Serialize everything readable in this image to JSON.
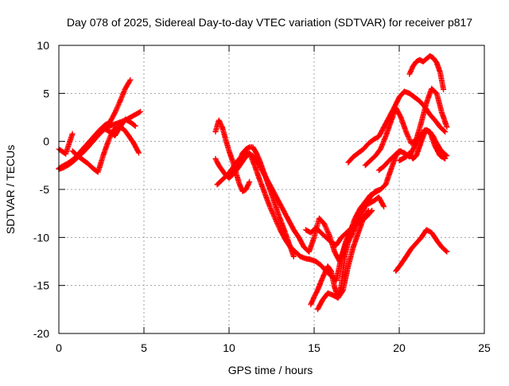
{
  "chart_data": {
    "type": "scatter",
    "title": "Day 078 of 2025, Sidereal Day-to-day VTEC variation (SDTVAR) for receiver p817",
    "xlabel": "GPS time / hours",
    "ylabel": "SDTVAR / TECUs",
    "xlim": [
      0,
      25
    ],
    "ylim": [
      -20,
      10
    ],
    "xticks": [
      0,
      5,
      10,
      15,
      20,
      25
    ],
    "yticks": [
      -20,
      -15,
      -10,
      -5,
      0,
      5,
      10
    ],
    "xtick_labels": [
      "0",
      "5",
      "10",
      "15",
      "20",
      "25"
    ],
    "ytick_labels": [
      "-20",
      "-15",
      "-10",
      "-5",
      "0",
      "5",
      "10"
    ],
    "grid": true,
    "legend": "none",
    "marker": "plus",
    "color": "#ff0000",
    "series": [
      {
        "x": [
          0.0,
          0.3,
          0.6,
          0.9,
          1.2,
          1.5,
          1.8,
          2.1,
          2.4,
          2.7,
          3.0,
          3.3,
          3.6,
          3.9,
          4.2
        ],
        "y": [
          -2.8,
          -2.5,
          -2.2,
          -1.8,
          -1.2,
          -0.6,
          0.0,
          0.6,
          1.2,
          1.7,
          2.0,
          3.0,
          4.2,
          5.5,
          6.4
        ]
      },
      {
        "x": [
          0.0,
          0.3,
          0.6,
          0.9,
          1.2,
          1.5,
          1.8,
          2.1,
          2.4,
          2.7,
          3.0,
          3.3,
          3.6,
          3.9,
          4.2,
          4.5,
          4.8
        ],
        "y": [
          -2.9,
          -2.7,
          -2.4,
          -2.0,
          -1.5,
          -1.0,
          -0.4,
          0.3,
          0.9,
          1.3,
          1.6,
          1.8,
          2.0,
          2.2,
          2.5,
          2.8,
          3.1
        ]
      },
      {
        "x": [
          0.8,
          1.1,
          1.4,
          1.7,
          2.0,
          2.3,
          2.6,
          2.9,
          3.2,
          3.5,
          3.8,
          4.1,
          4.4,
          4.7
        ],
        "y": [
          -1.0,
          -1.5,
          -1.9,
          -2.3,
          -2.8,
          -3.2,
          -1.5,
          0.0,
          1.2,
          1.5,
          1.3,
          0.6,
          -0.2,
          -1.2
        ]
      },
      {
        "x": [
          1.5,
          1.8,
          2.1,
          2.4,
          2.7,
          3.0,
          3.3,
          3.6,
          3.9,
          4.2,
          4.5
        ],
        "y": [
          -1.0,
          -0.4,
          0.2,
          0.8,
          1.3,
          1.0,
          0.6,
          1.5,
          2.3,
          2.0,
          1.6
        ]
      },
      {
        "x": [
          0.0,
          0.4,
          0.8
        ],
        "y": [
          -0.8,
          -1.3,
          0.8
        ]
      },
      {
        "x": [
          9.2,
          9.4,
          9.6,
          9.8,
          10.0,
          10.2,
          10.4,
          10.6,
          10.8,
          11.0,
          11.2
        ],
        "y": [
          1.0,
          2.2,
          1.5,
          0.2,
          -1.0,
          -2.0,
          -3.2,
          -4.4,
          -5.2,
          -5.0,
          -4.2
        ]
      },
      {
        "x": [
          9.2,
          9.4,
          9.6,
          9.8,
          10.0,
          10.2,
          10.4,
          10.6,
          10.8,
          11.0,
          11.2,
          11.4,
          11.6,
          11.8,
          12.0,
          12.3,
          12.6,
          12.9,
          13.2,
          13.5,
          13.8
        ],
        "y": [
          -1.8,
          -2.5,
          -3.0,
          -3.5,
          -3.8,
          -3.5,
          -2.8,
          -2.0,
          -1.2,
          -0.8,
          -0.6,
          -0.6,
          -1.2,
          -2.0,
          -3.0,
          -4.5,
          -6.0,
          -7.6,
          -9.0,
          -10.5,
          -12.0
        ]
      },
      {
        "x": [
          9.3,
          9.6,
          9.9,
          10.2,
          10.5,
          10.8,
          11.1,
          11.4,
          11.7,
          12.0,
          12.3,
          12.6,
          12.9,
          13.2,
          13.5,
          13.8,
          14.1,
          14.4,
          14.7,
          15.0,
          15.3,
          15.6,
          15.9,
          16.2,
          16.5,
          16.8,
          17.1,
          17.4,
          17.7,
          18.0,
          18.3,
          18.6,
          18.9
        ],
        "y": [
          -4.5,
          -4.0,
          -3.5,
          -2.8,
          -2.0,
          -1.6,
          -1.2,
          -1.5,
          -2.2,
          -3.2,
          -4.2,
          -5.2,
          -6.2,
          -7.2,
          -8.2,
          -9.2,
          -10.0,
          -11.0,
          -11.5,
          -10.0,
          -8.0,
          -8.6,
          -9.8,
          -11.5,
          -12.5,
          -11.0,
          -9.5,
          -8.0,
          -7.0,
          -6.3,
          -5.6,
          -5.3,
          -5.0
        ]
      },
      {
        "x": [
          10.0,
          10.3,
          10.6,
          10.9,
          11.2,
          11.5,
          11.8,
          12.1,
          12.4,
          12.7,
          13.0,
          13.3,
          13.6,
          13.9,
          14.2,
          14.5,
          14.8,
          15.1,
          15.4,
          15.7,
          16.0,
          16.3,
          16.6,
          16.9,
          17.2,
          17.5,
          17.8,
          18.1
        ],
        "y": [
          -3.8,
          -3.3,
          -2.6,
          -1.8,
          -1.2,
          -2.5,
          -4.0,
          -5.4,
          -6.8,
          -8.0,
          -9.2,
          -10.2,
          -11.0,
          -11.5,
          -12.0,
          -12.2,
          -12.3,
          -12.5,
          -12.9,
          -13.5,
          -14.0,
          -14.5,
          -12.0,
          -10.2,
          -9.2,
          -8.6,
          -8.2,
          -7.8
        ]
      },
      {
        "x": [
          14.8,
          15.0,
          15.2,
          15.4,
          15.6,
          15.8,
          16.0,
          16.2,
          16.4,
          16.6,
          16.8,
          17.0,
          17.2,
          17.4,
          17.6,
          17.8,
          18.0,
          18.3,
          18.6,
          18.9,
          19.2,
          19.5,
          19.8,
          20.1
        ],
        "y": [
          -17.0,
          -16.2,
          -15.5,
          -14.6,
          -13.8,
          -13.0,
          -13.5,
          -15.2,
          -16.2,
          -15.0,
          -12.0,
          -10.5,
          -9.8,
          -9.0,
          -8.2,
          -7.5,
          -6.8,
          -5.8,
          -5.2,
          -5.0,
          -4.5,
          -3.0,
          -1.5,
          -1.0
        ]
      },
      {
        "x": [
          15.2,
          15.5,
          15.8,
          16.1,
          16.4,
          16.7,
          17.0,
          17.3,
          17.6,
          17.9,
          18.2
        ],
        "y": [
          -17.5,
          -16.5,
          -15.8,
          -16.0,
          -16.3,
          -15.5,
          -13.0,
          -11.0,
          -9.5,
          -8.0,
          -7.2
        ]
      },
      {
        "x": [
          14.5,
          14.8,
          15.1,
          15.4,
          15.7,
          16.0,
          16.3,
          16.6,
          16.9,
          17.2,
          17.5,
          17.8,
          18.1,
          18.4
        ],
        "y": [
          -9.2,
          -9.5,
          -9.0,
          -9.5,
          -10.0,
          -10.5,
          -10.8,
          -10.0,
          -9.5,
          -9.0,
          -8.5,
          -8.2,
          -7.8,
          -7.2
        ]
      },
      {
        "x": [
          17.0,
          17.3,
          17.6,
          17.9,
          18.2,
          18.5,
          18.8,
          19.1,
          19.4,
          19.7,
          20.0,
          20.3,
          20.6,
          20.9,
          21.2,
          21.5,
          21.8,
          22.1,
          22.4,
          22.7
        ],
        "y": [
          -2.2,
          -1.6,
          -1.2,
          -0.8,
          -0.2,
          0.2,
          0.5,
          1.5,
          2.5,
          3.5,
          4.6,
          5.2,
          5.0,
          4.6,
          4.2,
          3.6,
          2.8,
          2.2,
          1.5,
          1.0
        ]
      },
      {
        "x": [
          18.0,
          18.3,
          18.6,
          18.9,
          19.2,
          19.5,
          19.8,
          20.1,
          20.4,
          20.7,
          21.0,
          21.3,
          21.6,
          21.9,
          22.2,
          22.5,
          22.8
        ],
        "y": [
          -2.5,
          -2.0,
          -1.5,
          -0.8,
          0.5,
          2.0,
          3.5,
          2.5,
          1.0,
          -0.2,
          0.2,
          2.0,
          4.0,
          5.5,
          5.0,
          3.0,
          1.5
        ]
      },
      {
        "x": [
          18.8,
          19.1,
          19.4,
          19.7,
          20.0,
          20.3,
          20.6,
          20.9,
          21.2,
          21.5,
          21.8,
          22.1,
          22.4,
          22.7
        ],
        "y": [
          -3.0,
          -2.6,
          -2.0,
          -1.5,
          -1.0,
          -1.2,
          -1.6,
          -0.5,
          0.5,
          1.2,
          1.0,
          -0.5,
          -1.5,
          -1.8
        ]
      },
      {
        "x": [
          20.0,
          20.2,
          20.4,
          20.6,
          20.8,
          21.0,
          21.2,
          21.4,
          21.6,
          21.8,
          22.0,
          22.2,
          22.4,
          22.6,
          22.8
        ],
        "y": [
          -2.0,
          -1.8,
          -1.6,
          -1.2,
          -1.8,
          -1.5,
          -0.5,
          0.5,
          1.2,
          1.0,
          0.5,
          -0.2,
          -0.8,
          -1.2,
          -1.5
        ]
      },
      {
        "x": [
          20.6,
          20.8,
          21.0,
          21.2,
          21.4,
          21.6,
          21.8,
          22.0,
          22.2,
          22.4,
          22.6
        ],
        "y": [
          7.0,
          7.8,
          8.3,
          8.5,
          8.3,
          8.6,
          8.9,
          8.7,
          8.2,
          7.2,
          5.4
        ]
      },
      {
        "x": [
          18.2,
          18.5,
          18.8,
          19.1
        ],
        "y": [
          -6.5,
          -6.2,
          -5.8,
          -6.8
        ]
      },
      {
        "x": [
          19.8,
          20.1,
          20.4,
          20.7,
          21.0,
          21.3,
          21.6,
          21.9,
          22.2,
          22.5,
          22.8
        ],
        "y": [
          -13.5,
          -12.8,
          -12.0,
          -11.2,
          -10.6,
          -10.0,
          -9.2,
          -9.5,
          -10.3,
          -11.0,
          -11.5
        ]
      }
    ]
  }
}
